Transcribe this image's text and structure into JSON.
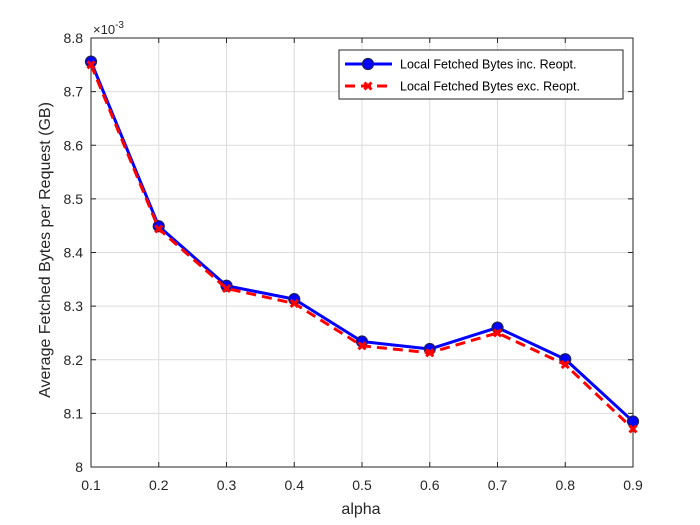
{
  "chart_data": {
    "type": "line",
    "x": [
      0.1,
      0.2,
      0.3,
      0.4,
      0.5,
      0.6,
      0.7,
      0.8,
      0.9
    ],
    "series": [
      {
        "name": "Local Fetched Bytes inc. Reopt.",
        "values": [
          8.756,
          8.449,
          8.338,
          8.313,
          8.234,
          8.22,
          8.26,
          8.201,
          8.085
        ],
        "color": "#0000ff",
        "line_style": "solid",
        "marker": "filled-circle"
      },
      {
        "name": "Local Fetched Bytes exc. Reopt.",
        "values": [
          8.75,
          8.444,
          8.333,
          8.305,
          8.226,
          8.213,
          8.25,
          8.191,
          8.071
        ],
        "color": "#ff0000",
        "line_style": "dashed",
        "marker": "x"
      }
    ],
    "xlabel": "alpha",
    "ylabel": "Average Fetched Bytes per Request (GB)",
    "x_ticks": [
      "0.1",
      "0.2",
      "0.3",
      "0.4",
      "0.5",
      "0.6",
      "0.7",
      "0.8",
      "0.9"
    ],
    "y_ticks": [
      "8",
      "8.1",
      "8.2",
      "8.3",
      "8.4",
      "8.5",
      "8.6",
      "8.7",
      "8.8"
    ],
    "y_exponent": {
      "base": "×10",
      "power": "-3"
    },
    "xlim": [
      0.1,
      0.9
    ],
    "ylim": [
      8.0,
      8.8
    ],
    "grid": true,
    "legend_position": "top-right"
  }
}
